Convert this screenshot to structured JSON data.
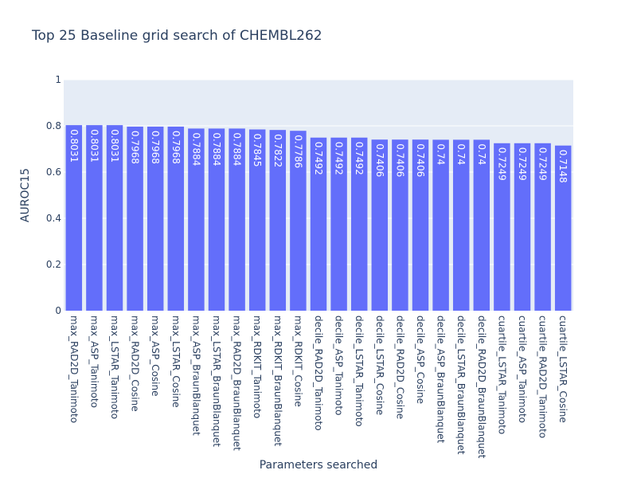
{
  "chart_data": {
    "type": "bar",
    "title": "Top 25 Baseline grid search of CHEMBL262",
    "xlabel": "Parameters searched",
    "ylabel": "AUROC15",
    "ylim": [
      0,
      1
    ],
    "yticks": [
      0,
      0.2,
      0.4,
      0.6,
      0.8,
      1
    ],
    "ytick_labels": [
      "0",
      "0.2",
      "0.4",
      "0.6",
      "0.8",
      "1"
    ],
    "grid": true,
    "bar_color": "#636efa",
    "plot_bg": "#e5ecf6",
    "categories": [
      "max_RAD2D_Tanimoto",
      "max_ASP_Tanimoto",
      "max_LSTAR_Tanimoto",
      "max_RAD2D_Cosine",
      "max_ASP_Cosine",
      "max_LSTAR_Cosine",
      "max_ASP_BraunBlanquet",
      "max_LSTAR_BraunBlanquet",
      "max_RAD2D_BraunBlanquet",
      "max_RDKIT_Tanimoto",
      "max_RDKIT_BraunBlanquet",
      "max_RDKIT_Cosine",
      "decile_RAD2D_Tanimoto",
      "decile_ASP_Tanimoto",
      "decile_LSTAR_Tanimoto",
      "decile_LSTAR_Cosine",
      "decile_RAD2D_Cosine",
      "decile_ASP_Cosine",
      "decile_ASP_BraunBlanquet",
      "decile_LSTAR_BraunBlanquet",
      "decile_RAD2D_BraunBlanquet",
      "cuartile_LSTAR_Tanimoto",
      "cuartile_ASP_Tanimoto",
      "cuartile_RAD2D_Tanimoto",
      "cuartile_LSTAR_Cosine"
    ],
    "values": [
      0.8031,
      0.8031,
      0.8031,
      0.7968,
      0.7968,
      0.7968,
      0.7884,
      0.7884,
      0.7884,
      0.7845,
      0.7822,
      0.7786,
      0.7492,
      0.7492,
      0.7492,
      0.7406,
      0.7406,
      0.7406,
      0.74,
      0.74,
      0.74,
      0.7249,
      0.7249,
      0.7249,
      0.7148
    ],
    "value_labels": [
      "0.8031",
      "0.8031",
      "0.8031",
      "0.7968",
      "0.7968",
      "0.7968",
      "0.7884",
      "0.7884",
      "0.7884",
      "0.7845",
      "0.7822",
      "0.7786",
      "0.7492",
      "0.7492",
      "0.7492",
      "0.7406",
      "0.7406",
      "0.7406",
      "0.74",
      "0.74",
      "0.74",
      "0.7249",
      "0.7249",
      "0.7249",
      "0.7148"
    ]
  }
}
